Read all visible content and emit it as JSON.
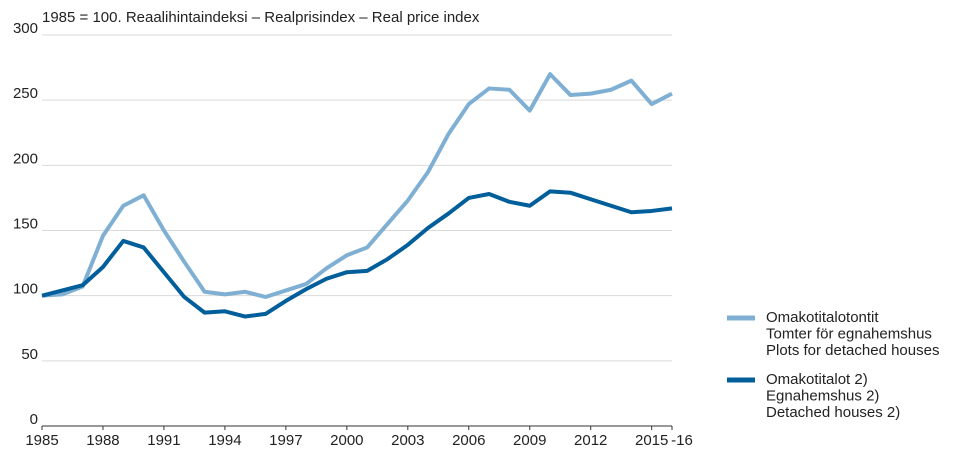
{
  "chart_data": {
    "type": "line",
    "title": "1985 = 100. Reaalihintaindeksi – Realprisindex – Real price index",
    "x": [
      1985,
      1986,
      1987,
      1988,
      1989,
      1990,
      1991,
      1992,
      1993,
      1994,
      1995,
      1996,
      1997,
      1998,
      1999,
      2000,
      2001,
      2002,
      2003,
      2004,
      2005,
      2006,
      2007,
      2008,
      2009,
      2010,
      2011,
      2012,
      2013,
      2014,
      2015,
      2016
    ],
    "series": [
      {
        "name": [
          "Omakotitalotontit",
          "Tomter för egnahemshus",
          "Plots for detached houses"
        ],
        "color": "#7fb0d4",
        "values": [
          100,
          101,
          107,
          146,
          169,
          177,
          150,
          126,
          103,
          101,
          103,
          99,
          104,
          109,
          121,
          131,
          137,
          155,
          173,
          195,
          224,
          247,
          259,
          258,
          242,
          270,
          254,
          255,
          258,
          265,
          247,
          255
        ]
      },
      {
        "name": [
          "Omakotitalot 2)",
          "Egnahemshus 2)",
          "Detached houses 2)"
        ],
        "color": "#005f9b",
        "values": [
          100,
          104,
          108,
          122,
          142,
          137,
          118,
          99,
          87,
          88,
          84,
          86,
          96,
          105,
          113,
          118,
          119,
          128,
          139,
          152,
          163,
          175,
          178,
          172,
          169,
          180,
          179,
          174,
          169,
          164,
          165,
          167
        ]
      }
    ],
    "xlim": [
      1985,
      2016
    ],
    "xticks": [
      1985,
      1988,
      1991,
      1994,
      1997,
      2000,
      2003,
      2006,
      2009,
      2012,
      2015,
      {
        "value": 2016,
        "label": "-16"
      }
    ],
    "ylim": [
      0,
      300
    ],
    "yticks": [
      0,
      50,
      100,
      150,
      200,
      250,
      300
    ],
    "grid": true
  }
}
